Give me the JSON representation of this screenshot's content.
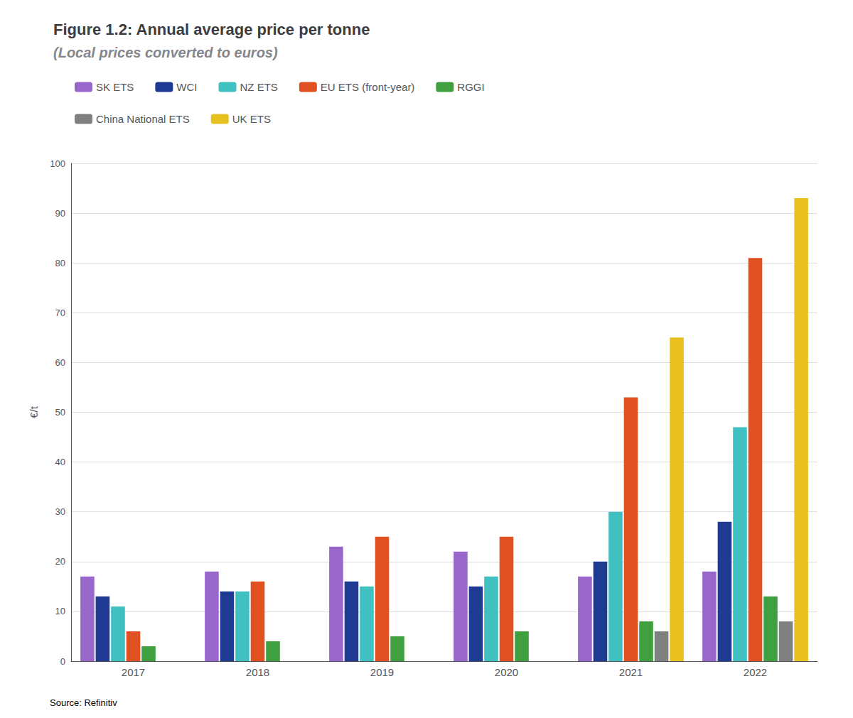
{
  "chart_data": {
    "type": "bar",
    "title": "Figure 1.2: Annual average price per tonne",
    "subtitle": "(Local prices converted to euros)",
    "ylabel": "€/t",
    "annotations": [
      "Source: Refinitiv"
    ],
    "categories": [
      "2017",
      "2018",
      "2019",
      "2020",
      "2021",
      "2022"
    ],
    "series": [
      {
        "name": "SK ETS",
        "color": "#9966CC",
        "values": [
          17,
          18,
          23,
          22,
          17,
          18
        ]
      },
      {
        "name": "WCI",
        "color": "#1F3A93",
        "values": [
          13,
          14,
          16,
          15,
          20,
          28
        ]
      },
      {
        "name": "NZ ETS",
        "color": "#40C0C0",
        "values": [
          11,
          14,
          15,
          17,
          30,
          47
        ]
      },
      {
        "name": "EU ETS (front-year)",
        "color": "#E05020",
        "values": [
          6,
          16,
          25,
          25,
          53,
          81
        ]
      },
      {
        "name": "RGGI",
        "color": "#40A040",
        "values": [
          3,
          4,
          5,
          6,
          8,
          13
        ]
      },
      {
        "name": "China National ETS",
        "color": "#808080",
        "values": [
          0,
          0,
          0,
          0,
          6,
          8
        ]
      },
      {
        "name": "UK ETS",
        "color": "#E8C020",
        "values": [
          0,
          0,
          0,
          0,
          65,
          93
        ]
      }
    ],
    "ylim": [
      0,
      100
    ],
    "yticks": [
      0,
      10,
      20,
      30,
      40,
      50,
      60,
      70,
      80,
      90,
      100
    ],
    "grid": true,
    "legend": "upper left"
  }
}
